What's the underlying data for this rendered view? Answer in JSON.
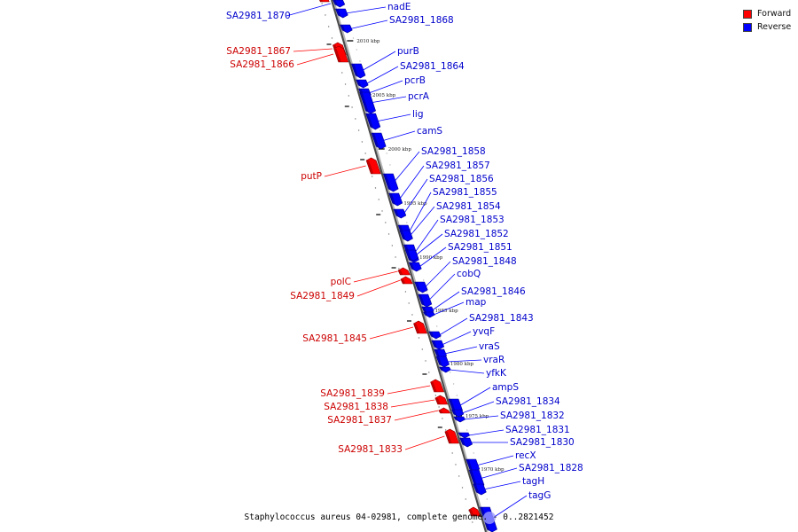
{
  "caption": "Staphylococcus aureus 04-02981, complete genome. - 0..2821452",
  "legend": [
    {
      "label": "Forward",
      "color": "#ff0000"
    },
    {
      "label": "Reverse",
      "color": "#0000ff"
    }
  ],
  "colors": {
    "forward": "#ff0000",
    "reverse": "#0000ff",
    "forward_text": "#cc0000",
    "reverse_text": "#0000cc"
  },
  "scale_ticks": [
    "2010 kbp",
    "2005 kbp",
    "2000 kbp",
    "1995 kbp",
    "1990 kbp",
    "1985 kbp",
    "1980 kbp",
    "1975 kbp",
    "1970 kbp"
  ],
  "forward_genes": [
    "SA2981_1867",
    "SA2981_1866",
    "putP",
    "polC",
    "SA2981_1849",
    "SA2981_1845",
    "SA2981_1839",
    "SA2981_1838",
    "SA2981_1837",
    "SA2981_1833"
  ],
  "reverse_genes": [
    "SA2981_1870",
    "nadE",
    "SA2981_1868",
    "purB",
    "SA2981_1864",
    "pcrB",
    "pcrA",
    "lig",
    "camS",
    "SA2981_1858",
    "SA2981_1857",
    "SA2981_1856",
    "SA2981_1855",
    "SA2981_1854",
    "SA2981_1853",
    "SA2981_1852",
    "SA2981_1851",
    "SA2981_1848",
    "cobQ",
    "SA2981_1846",
    "map",
    "SA2981_1843",
    "yvqF",
    "vraS",
    "vraR",
    "yfkK",
    "ampS",
    "SA2981_1834",
    "SA2981_1832",
    "SA2981_1831",
    "SA2981_1830",
    "recX",
    "SA2981_1828",
    "tagH",
    "tagG"
  ]
}
